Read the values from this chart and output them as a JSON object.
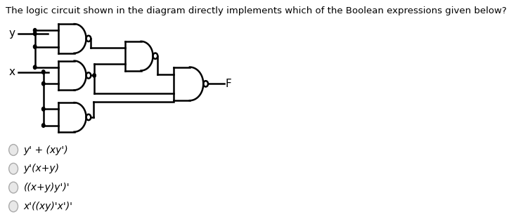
{
  "title": "The logic circuit shown in the diagram directly implements which of the Boolean expressions given below?",
  "title_fontsize": 9.5,
  "options": [
    "y' + (xy')",
    "y'(x+y)",
    "((x+y)y')'",
    "x'((xy)'x')'"
  ],
  "option_fontsize": 10,
  "bg_color": "#ffffff",
  "text_color": "#000000",
  "line_color": "#000000",
  "gate_lw": 1.8,
  "input_y_label": "y",
  "input_x_label": "x",
  "output_label": "F",
  "fig_w": 7.44,
  "fig_h": 3.19,
  "dpi": 100
}
